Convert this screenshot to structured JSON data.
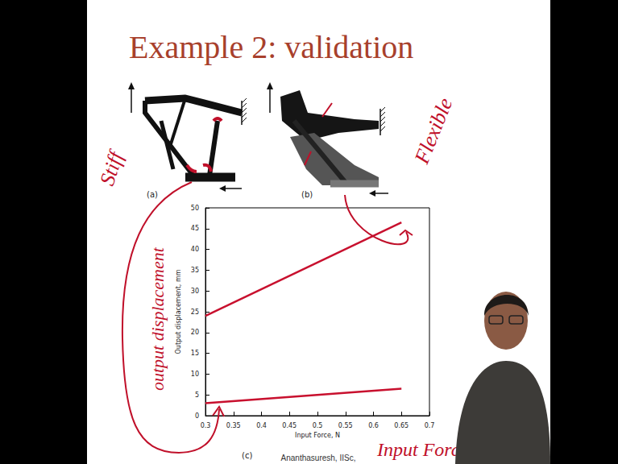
{
  "title": "Example 2: validation",
  "figure_labels": [
    "(a)",
    "(b)",
    "(c)"
  ],
  "annotations": {
    "y_note": "output displacement",
    "x_note": "Input Force"
  },
  "footer": "Ananthasuresh, IISc,",
  "chart_data": {
    "type": "line",
    "x_label": "Input Force, N",
    "y_label": "Output displacement, mm",
    "x": [
      0.3,
      0.65
    ],
    "series": [
      {
        "name": "Flexible",
        "color": "#c8102e",
        "line_style": "solid",
        "values": [
          24,
          46.5
        ]
      },
      {
        "name": "Stiff",
        "color": "#c8102e",
        "line_style": "solid",
        "values": [
          3,
          6.5
        ]
      }
    ],
    "xlim": [
      0.3,
      0.7
    ],
    "xticks": [
      0.3,
      0.35,
      0.4,
      0.45,
      0.5,
      0.55,
      0.6,
      0.65,
      0.7
    ],
    "ylim": [
      0,
      50
    ],
    "yticks": [
      0,
      5,
      10,
      15,
      20,
      25,
      30,
      35,
      40,
      45,
      50
    ],
    "grid": false
  }
}
